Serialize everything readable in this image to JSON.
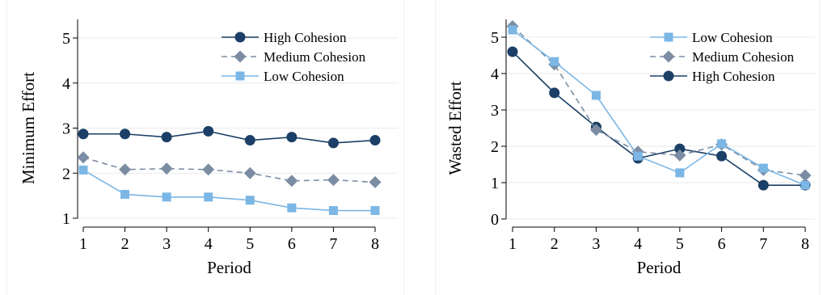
{
  "chart_data": [
    {
      "type": "line",
      "xlabel": "Period",
      "ylabel": "Minimum Effort",
      "x": [
        1,
        2,
        3,
        4,
        5,
        6,
        7,
        8
      ],
      "xlim": [
        1,
        8
      ],
      "ylim": [
        1,
        5
      ],
      "yticks": [
        1,
        2,
        3,
        4,
        5
      ],
      "legend_position": "top-right",
      "series": [
        {
          "name": "High Cohesion",
          "color": "#1b3f66",
          "marker": "circle",
          "dash": "solid",
          "values": [
            2.87,
            2.87,
            2.8,
            2.93,
            2.73,
            2.8,
            2.67,
            2.73
          ]
        },
        {
          "name": "Medium Cohesion",
          "color": "#7c8da3",
          "marker": "diamond",
          "dash": "dashed",
          "values": [
            2.35,
            2.08,
            2.1,
            2.08,
            2.0,
            1.83,
            1.85,
            1.8
          ]
        },
        {
          "name": "Low Cohesion",
          "color": "#7cb6e4",
          "marker": "square",
          "dash": "solid",
          "values": [
            2.07,
            1.53,
            1.47,
            1.47,
            1.4,
            1.23,
            1.17,
            1.17
          ]
        }
      ]
    },
    {
      "type": "line",
      "xlabel": "Period",
      "ylabel": "Wasted Effort",
      "x": [
        1,
        2,
        3,
        4,
        5,
        6,
        7,
        8
      ],
      "xlim": [
        1,
        8
      ],
      "ylim": [
        0,
        5
      ],
      "yticks": [
        0,
        1,
        2,
        3,
        4,
        5
      ],
      "legend_position": "top-right",
      "series": [
        {
          "name": "Low Cohesion",
          "color": "#7cb6e4",
          "marker": "square",
          "dash": "solid",
          "values": [
            5.2,
            4.33,
            3.4,
            1.73,
            1.27,
            2.07,
            1.4,
            0.93
          ]
        },
        {
          "name": "Medium Cohesion",
          "color": "#7c8da3",
          "marker": "diamond",
          "dash": "dashed",
          "values": [
            5.3,
            4.25,
            2.45,
            1.85,
            1.75,
            2.05,
            1.35,
            1.2
          ]
        },
        {
          "name": "High Cohesion",
          "color": "#1b3f66",
          "marker": "circle",
          "dash": "solid",
          "values": [
            4.6,
            3.47,
            2.53,
            1.67,
            1.93,
            1.73,
            0.93,
            0.93
          ]
        }
      ]
    }
  ]
}
